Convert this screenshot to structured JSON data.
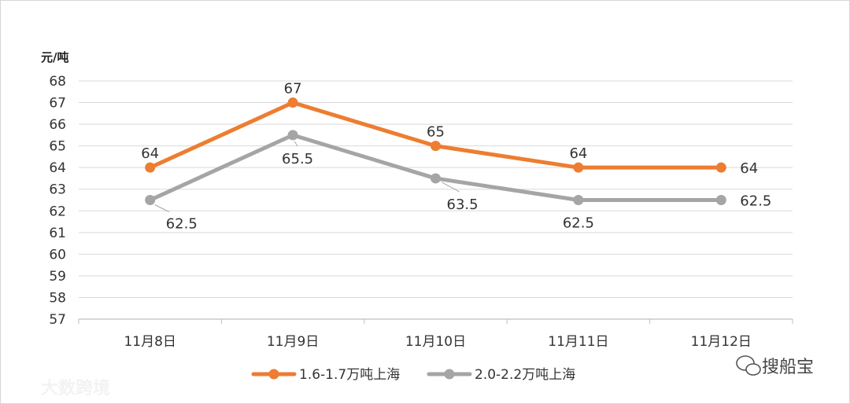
{
  "chart_data": {
    "type": "line",
    "ylabel": "元/吨",
    "ylim": [
      57,
      68
    ],
    "yticks": [
      57,
      58,
      59,
      60,
      61,
      62,
      63,
      64,
      65,
      66,
      67,
      68
    ],
    "categories": [
      "11月8日",
      "11月9日",
      "11月10日",
      "11月11日",
      "11月12日"
    ],
    "grid": true,
    "legend_position": "bottom",
    "series": [
      {
        "name": "1.6-1.7万吨上海",
        "values": [
          64,
          67,
          65,
          64,
          64
        ],
        "labels": [
          "64",
          "67",
          "65",
          "64",
          "64"
        ],
        "color": "#ED7D31"
      },
      {
        "name": "2.0-2.2万吨上海",
        "values": [
          62.5,
          65.5,
          63.5,
          62.5,
          62.5
        ],
        "labels": [
          "62.5",
          "65.5",
          "63.5",
          "62.5",
          "62.5"
        ],
        "color": "#A5A5A5"
      }
    ]
  },
  "watermark": {
    "left_text": "大数跨境",
    "right_text": "搜船宝"
  }
}
